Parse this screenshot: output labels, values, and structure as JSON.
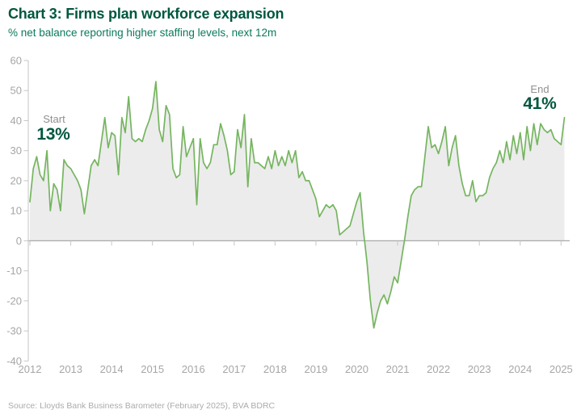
{
  "header": {
    "title": "Chart 3: Firms plan workforce expansion",
    "subtitle": "% net balance reporting higher staffing levels, next 12m"
  },
  "annotations": {
    "start_label": "Start",
    "start_value": "13%",
    "end_label": "End",
    "end_value": "41%"
  },
  "source": "Source: Lloyds Bank Business Barometer (February 2025), BVA BDRC",
  "colors": {
    "title": "#00573f",
    "subtitle": "#0a7a5c",
    "annotation_value": "#00573f",
    "annotation_label": "#909090",
    "line": "#75b55f",
    "fill": "#ececec",
    "zero_line": "#a8a8a8",
    "axis": "#c6c6c6",
    "axis_text": "#a6a6a6",
    "source_text": "#ababab"
  },
  "chart_data": {
    "type": "area",
    "title": "Chart 3: Firms plan workforce expansion",
    "subtitle": "% net balance reporting higher staffing levels, next 12m",
    "unit": "%",
    "frequency": "monthly",
    "x_start": "2012-01",
    "x_end": "2025-02",
    "x_tick_years": [
      2012,
      2013,
      2014,
      2015,
      2016,
      2017,
      2018,
      2019,
      2020,
      2021,
      2022,
      2023,
      2024,
      2025
    ],
    "yticks": [
      60,
      50,
      40,
      30,
      20,
      10,
      0,
      -10,
      -20,
      -30,
      -40
    ],
    "ylim": [
      -40,
      60
    ],
    "grid": false,
    "legend": "none",
    "start_point": {
      "label": "Start",
      "date": "2012-01",
      "value": 13
    },
    "end_point": {
      "label": "End",
      "date": "2025-02",
      "value": 41
    },
    "series": [
      {
        "name": "% net balance reporting higher staffing levels, next 12m",
        "values": [
          13,
          24,
          28,
          22,
          20,
          30,
          10,
          19,
          17,
          10,
          27,
          25,
          24,
          22,
          20,
          17,
          9,
          17,
          25,
          27,
          25,
          33,
          41,
          31,
          36,
          35,
          22,
          41,
          36,
          48,
          34,
          33,
          34,
          33,
          37,
          40,
          44,
          53,
          37,
          33,
          45,
          42,
          24,
          21,
          22,
          38,
          28,
          31,
          34,
          12,
          34,
          26,
          24,
          26,
          32,
          32,
          39,
          35,
          30,
          22,
          23,
          37,
          31,
          42,
          18,
          34,
          26,
          26,
          25,
          24,
          28,
          24,
          30,
          25,
          28,
          25,
          30,
          26,
          30,
          21,
          23,
          20,
          20,
          17,
          14,
          8,
          10,
          12,
          11,
          12,
          10,
          2,
          3,
          4,
          5,
          9,
          13,
          16,
          3,
          -7,
          -20,
          -29,
          -24,
          -20,
          -18,
          -21,
          -17,
          -12,
          -14,
          -7,
          0,
          8,
          15,
          17,
          18,
          18,
          28,
          38,
          31,
          32,
          29,
          33,
          38,
          25,
          31,
          35,
          25,
          19,
          15,
          15,
          20,
          13,
          15,
          15,
          16,
          21,
          24,
          26,
          30,
          26,
          33,
          27,
          35,
          29,
          36,
          27,
          38,
          30,
          39,
          32,
          39,
          37,
          36,
          37,
          34,
          33,
          32,
          41
        ]
      }
    ]
  }
}
